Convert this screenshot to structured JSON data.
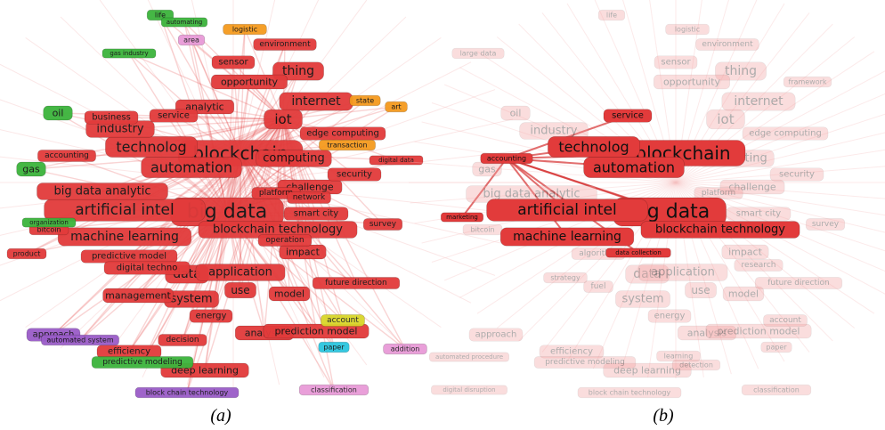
{
  "panels": [
    {
      "caption": "(a)",
      "nodes": [
        "blockchain",
        "big data",
        "artificial intel",
        "technolog",
        "automation",
        "machine learning",
        "blockchain technology",
        "internet",
        "iot",
        "thing",
        "computing",
        "industry",
        "big data analytic",
        "data",
        "application",
        "system",
        "analysis",
        "prediction model",
        "deep learning",
        "challenge",
        "security",
        "smart city",
        "predictive model",
        "digital techno",
        "management",
        "use",
        "model",
        "impact",
        "energy",
        "decision",
        "efficiency",
        "approach",
        "gas",
        "oil",
        "life",
        "automating",
        "area",
        "logistic",
        "art",
        "state",
        "environment",
        "sensor",
        "opportunity",
        "analytic",
        "service",
        "edge computing",
        "survey",
        "paper",
        "account",
        "classification",
        "block chain technology",
        "predictive modeling",
        "accounting",
        "bitcoin",
        "product",
        "platform",
        "network",
        "operation",
        "future direction",
        "addition",
        "digital data",
        "transaction",
        "business",
        "gas industry",
        "organization",
        "automated system"
      ]
    },
    {
      "caption": "(b)",
      "highlighted": [
        "blockchain",
        "big data",
        "artificial intel",
        "technolog",
        "automation",
        "machine learning",
        "blockchain technology",
        "service",
        "accounting",
        "marketing",
        "data collection"
      ],
      "faded": [
        "internet",
        "iot",
        "thing",
        "computing",
        "industry",
        "big data analytic",
        "data",
        "application",
        "system",
        "analysis",
        "prediction model",
        "deep learning",
        "challenge",
        "security",
        "smart city",
        "use",
        "model",
        "impact",
        "energy",
        "efficiency",
        "approach",
        "gas",
        "oil",
        "life",
        "logistic",
        "environment",
        "sensor",
        "opportunity",
        "edge computing",
        "survey",
        "paper",
        "account",
        "classification",
        "block chain technology",
        "predictive modeling",
        "bitcoin",
        "platform",
        "future direction",
        "research",
        "large data",
        "framework",
        "fuel",
        "strategy",
        "algorithm",
        "detection",
        "learning",
        "automated procedure",
        "digital disruption"
      ]
    }
  ]
}
